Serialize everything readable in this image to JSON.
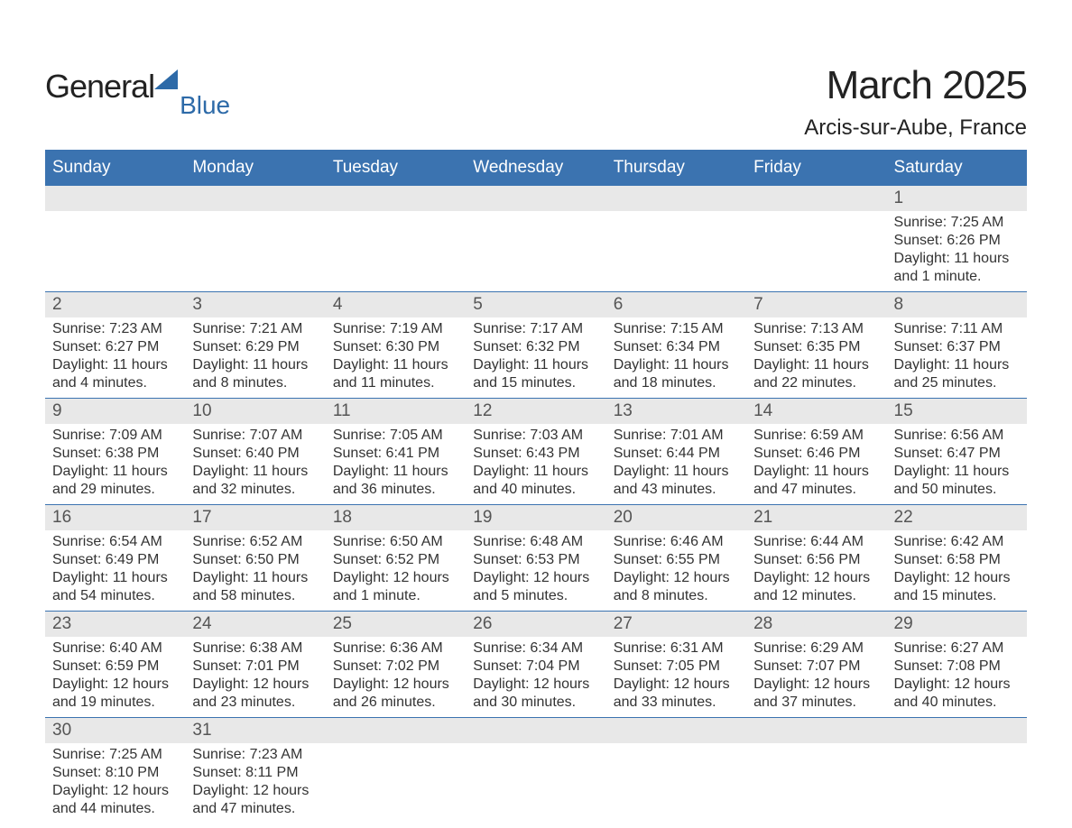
{
  "logo": {
    "part1": "General",
    "part2": "Blue"
  },
  "title": "March 2025",
  "location": "Arcis-sur-Aube, France",
  "colors": {
    "header_bg": "#3b73b0",
    "header_text": "#ffffff",
    "daynum_bg": "#e8e8e8",
    "border": "#3b73b0",
    "logo_blue": "#2d6aa8",
    "body_text": "#333333"
  },
  "day_headers": [
    "Sunday",
    "Monday",
    "Tuesday",
    "Wednesday",
    "Thursday",
    "Friday",
    "Saturday"
  ],
  "weeks": [
    [
      {
        "day": "",
        "sunrise": "",
        "sunset": "",
        "daylight": ""
      },
      {
        "day": "",
        "sunrise": "",
        "sunset": "",
        "daylight": ""
      },
      {
        "day": "",
        "sunrise": "",
        "sunset": "",
        "daylight": ""
      },
      {
        "day": "",
        "sunrise": "",
        "sunset": "",
        "daylight": ""
      },
      {
        "day": "",
        "sunrise": "",
        "sunset": "",
        "daylight": ""
      },
      {
        "day": "",
        "sunrise": "",
        "sunset": "",
        "daylight": ""
      },
      {
        "day": "1",
        "sunrise": "Sunrise: 7:25 AM",
        "sunset": "Sunset: 6:26 PM",
        "daylight": "Daylight: 11 hours and 1 minute."
      }
    ],
    [
      {
        "day": "2",
        "sunrise": "Sunrise: 7:23 AM",
        "sunset": "Sunset: 6:27 PM",
        "daylight": "Daylight: 11 hours and 4 minutes."
      },
      {
        "day": "3",
        "sunrise": "Sunrise: 7:21 AM",
        "sunset": "Sunset: 6:29 PM",
        "daylight": "Daylight: 11 hours and 8 minutes."
      },
      {
        "day": "4",
        "sunrise": "Sunrise: 7:19 AM",
        "sunset": "Sunset: 6:30 PM",
        "daylight": "Daylight: 11 hours and 11 minutes."
      },
      {
        "day": "5",
        "sunrise": "Sunrise: 7:17 AM",
        "sunset": "Sunset: 6:32 PM",
        "daylight": "Daylight: 11 hours and 15 minutes."
      },
      {
        "day": "6",
        "sunrise": "Sunrise: 7:15 AM",
        "sunset": "Sunset: 6:34 PM",
        "daylight": "Daylight: 11 hours and 18 minutes."
      },
      {
        "day": "7",
        "sunrise": "Sunrise: 7:13 AM",
        "sunset": "Sunset: 6:35 PM",
        "daylight": "Daylight: 11 hours and 22 minutes."
      },
      {
        "day": "8",
        "sunrise": "Sunrise: 7:11 AM",
        "sunset": "Sunset: 6:37 PM",
        "daylight": "Daylight: 11 hours and 25 minutes."
      }
    ],
    [
      {
        "day": "9",
        "sunrise": "Sunrise: 7:09 AM",
        "sunset": "Sunset: 6:38 PM",
        "daylight": "Daylight: 11 hours and 29 minutes."
      },
      {
        "day": "10",
        "sunrise": "Sunrise: 7:07 AM",
        "sunset": "Sunset: 6:40 PM",
        "daylight": "Daylight: 11 hours and 32 minutes."
      },
      {
        "day": "11",
        "sunrise": "Sunrise: 7:05 AM",
        "sunset": "Sunset: 6:41 PM",
        "daylight": "Daylight: 11 hours and 36 minutes."
      },
      {
        "day": "12",
        "sunrise": "Sunrise: 7:03 AM",
        "sunset": "Sunset: 6:43 PM",
        "daylight": "Daylight: 11 hours and 40 minutes."
      },
      {
        "day": "13",
        "sunrise": "Sunrise: 7:01 AM",
        "sunset": "Sunset: 6:44 PM",
        "daylight": "Daylight: 11 hours and 43 minutes."
      },
      {
        "day": "14",
        "sunrise": "Sunrise: 6:59 AM",
        "sunset": "Sunset: 6:46 PM",
        "daylight": "Daylight: 11 hours and 47 minutes."
      },
      {
        "day": "15",
        "sunrise": "Sunrise: 6:56 AM",
        "sunset": "Sunset: 6:47 PM",
        "daylight": "Daylight: 11 hours and 50 minutes."
      }
    ],
    [
      {
        "day": "16",
        "sunrise": "Sunrise: 6:54 AM",
        "sunset": "Sunset: 6:49 PM",
        "daylight": "Daylight: 11 hours and 54 minutes."
      },
      {
        "day": "17",
        "sunrise": "Sunrise: 6:52 AM",
        "sunset": "Sunset: 6:50 PM",
        "daylight": "Daylight: 11 hours and 58 minutes."
      },
      {
        "day": "18",
        "sunrise": "Sunrise: 6:50 AM",
        "sunset": "Sunset: 6:52 PM",
        "daylight": "Daylight: 12 hours and 1 minute."
      },
      {
        "day": "19",
        "sunrise": "Sunrise: 6:48 AM",
        "sunset": "Sunset: 6:53 PM",
        "daylight": "Daylight: 12 hours and 5 minutes."
      },
      {
        "day": "20",
        "sunrise": "Sunrise: 6:46 AM",
        "sunset": "Sunset: 6:55 PM",
        "daylight": "Daylight: 12 hours and 8 minutes."
      },
      {
        "day": "21",
        "sunrise": "Sunrise: 6:44 AM",
        "sunset": "Sunset: 6:56 PM",
        "daylight": "Daylight: 12 hours and 12 minutes."
      },
      {
        "day": "22",
        "sunrise": "Sunrise: 6:42 AM",
        "sunset": "Sunset: 6:58 PM",
        "daylight": "Daylight: 12 hours and 15 minutes."
      }
    ],
    [
      {
        "day": "23",
        "sunrise": "Sunrise: 6:40 AM",
        "sunset": "Sunset: 6:59 PM",
        "daylight": "Daylight: 12 hours and 19 minutes."
      },
      {
        "day": "24",
        "sunrise": "Sunrise: 6:38 AM",
        "sunset": "Sunset: 7:01 PM",
        "daylight": "Daylight: 12 hours and 23 minutes."
      },
      {
        "day": "25",
        "sunrise": "Sunrise: 6:36 AM",
        "sunset": "Sunset: 7:02 PM",
        "daylight": "Daylight: 12 hours and 26 minutes."
      },
      {
        "day": "26",
        "sunrise": "Sunrise: 6:34 AM",
        "sunset": "Sunset: 7:04 PM",
        "daylight": "Daylight: 12 hours and 30 minutes."
      },
      {
        "day": "27",
        "sunrise": "Sunrise: 6:31 AM",
        "sunset": "Sunset: 7:05 PM",
        "daylight": "Daylight: 12 hours and 33 minutes."
      },
      {
        "day": "28",
        "sunrise": "Sunrise: 6:29 AM",
        "sunset": "Sunset: 7:07 PM",
        "daylight": "Daylight: 12 hours and 37 minutes."
      },
      {
        "day": "29",
        "sunrise": "Sunrise: 6:27 AM",
        "sunset": "Sunset: 7:08 PM",
        "daylight": "Daylight: 12 hours and 40 minutes."
      }
    ],
    [
      {
        "day": "30",
        "sunrise": "Sunrise: 7:25 AM",
        "sunset": "Sunset: 8:10 PM",
        "daylight": "Daylight: 12 hours and 44 minutes."
      },
      {
        "day": "31",
        "sunrise": "Sunrise: 7:23 AM",
        "sunset": "Sunset: 8:11 PM",
        "daylight": "Daylight: 12 hours and 47 minutes."
      },
      {
        "day": "",
        "sunrise": "",
        "sunset": "",
        "daylight": ""
      },
      {
        "day": "",
        "sunrise": "",
        "sunset": "",
        "daylight": ""
      },
      {
        "day": "",
        "sunrise": "",
        "sunset": "",
        "daylight": ""
      },
      {
        "day": "",
        "sunrise": "",
        "sunset": "",
        "daylight": ""
      },
      {
        "day": "",
        "sunrise": "",
        "sunset": "",
        "daylight": ""
      }
    ]
  ]
}
